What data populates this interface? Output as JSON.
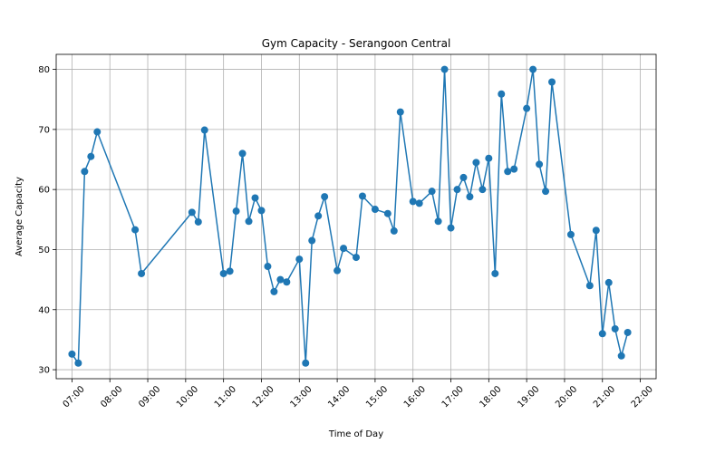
{
  "chart_data": {
    "type": "line",
    "title": "Gym Capacity - Serangoon Central",
    "xlabel": "Time of Day",
    "ylabel": "Average Capacity",
    "x_ticks": [
      "07:00",
      "08:00",
      "09:00",
      "10:00",
      "11:00",
      "12:00",
      "13:00",
      "14:00",
      "15:00",
      "16:00",
      "17:00",
      "18:00",
      "19:00",
      "20:00",
      "21:00",
      "22:00"
    ],
    "y_ticks": [
      30,
      40,
      50,
      60,
      70,
      80
    ],
    "xlim": [
      "06:35",
      "22:25"
    ],
    "ylim": [
      28.5,
      82.5
    ],
    "grid": true,
    "marker": "circle",
    "color": "#1f77b4",
    "series": [
      {
        "points": [
          [
            "07:00",
            32.6
          ],
          [
            "07:10",
            31.1
          ],
          [
            "07:20",
            63.0
          ],
          [
            "07:30",
            65.5
          ],
          [
            "07:40",
            69.6
          ],
          [
            "08:40",
            53.3
          ],
          [
            "08:50",
            46.0
          ],
          [
            "10:10",
            56.2
          ],
          [
            "10:20",
            54.6
          ],
          [
            "10:30",
            69.9
          ],
          [
            "11:00",
            46.0
          ],
          [
            "11:10",
            46.4
          ],
          [
            "11:20",
            56.4
          ],
          [
            "11:30",
            66.0
          ],
          [
            "11:40",
            54.7
          ],
          [
            "11:50",
            58.6
          ],
          [
            "12:00",
            56.5
          ],
          [
            "12:10",
            47.2
          ],
          [
            "12:20",
            43.0
          ],
          [
            "12:30",
            45.0
          ],
          [
            "12:40",
            44.6
          ],
          [
            "13:00",
            48.4
          ],
          [
            "13:10",
            31.1
          ],
          [
            "13:20",
            51.5
          ],
          [
            "13:30",
            55.6
          ],
          [
            "13:40",
            58.8
          ],
          [
            "14:00",
            46.5
          ],
          [
            "14:10",
            50.2
          ],
          [
            "14:30",
            48.7
          ],
          [
            "14:40",
            58.9
          ],
          [
            "15:00",
            56.7
          ],
          [
            "15:20",
            56.0
          ],
          [
            "15:30",
            53.1
          ],
          [
            "15:40",
            72.9
          ],
          [
            "16:00",
            58.0
          ],
          [
            "16:10",
            57.7
          ],
          [
            "16:30",
            59.7
          ],
          [
            "16:40",
            54.7
          ],
          [
            "16:50",
            80.0
          ],
          [
            "17:00",
            53.6
          ],
          [
            "17:10",
            60.0
          ],
          [
            "17:20",
            62.0
          ],
          [
            "17:30",
            58.8
          ],
          [
            "17:40",
            64.5
          ],
          [
            "17:50",
            60.0
          ],
          [
            "18:00",
            65.2
          ],
          [
            "18:10",
            46.0
          ],
          [
            "18:20",
            75.9
          ],
          [
            "18:30",
            63.0
          ],
          [
            "18:40",
            63.4
          ],
          [
            "19:00",
            73.5
          ],
          [
            "19:10",
            80.0
          ],
          [
            "19:20",
            64.2
          ],
          [
            "19:30",
            59.7
          ],
          [
            "19:40",
            77.9
          ],
          [
            "20:10",
            52.5
          ],
          [
            "20:40",
            44.0
          ],
          [
            "20:50",
            53.2
          ],
          [
            "21:00",
            36.0
          ],
          [
            "21:10",
            44.5
          ],
          [
            "21:20",
            36.8
          ],
          [
            "21:30",
            32.3
          ],
          [
            "21:40",
            36.2
          ]
        ]
      }
    ]
  }
}
